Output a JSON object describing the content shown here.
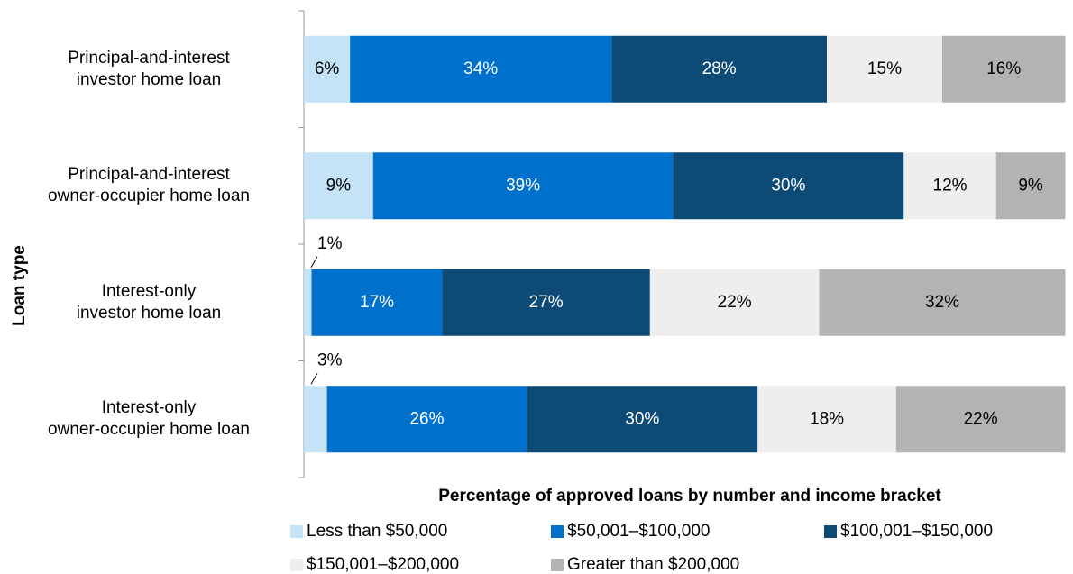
{
  "chart_data": {
    "type": "stacked_barh",
    "xlabel": "Percentage of approved loans by number and income bracket",
    "ylabel": "Loan type",
    "categories": [
      "Principal-and-interest\ninvestor home loan",
      "Principal-and-interest\nowner-occupier home loan",
      "Interest-only\ninvestor home loan",
      "Interest-only\nowner-occupier home loan"
    ],
    "xlim": [
      0,
      100
    ],
    "legend": "bottom",
    "series": [
      {
        "name": "Less than $50,000",
        "color": "#c5e3f7",
        "values": [
          6,
          9,
          1,
          3
        ],
        "value_labels": [
          "6%",
          "9%",
          "1%",
          "3%"
        ]
      },
      {
        "name": "$50,001–$100,000",
        "color": "#0070cd",
        "values": [
          34,
          39,
          17,
          26
        ],
        "value_labels": [
          "34%",
          "39%",
          "17%",
          "26%"
        ]
      },
      {
        "name": "$100,001–$150,000",
        "color": "#0d4a75",
        "values": [
          28,
          30,
          27,
          30
        ],
        "value_labels": [
          "28%",
          "30%",
          "27%",
          "30%"
        ]
      },
      {
        "name": "$150,001–$200,000",
        "color": "#eeeeee",
        "values": [
          15,
          12,
          22,
          18
        ],
        "value_labels": [
          "15%",
          "12%",
          "22%",
          "18%"
        ]
      },
      {
        "name": "Greater than $200,000",
        "color": "#b3b3b3",
        "values": [
          16,
          9,
          32,
          22
        ],
        "value_labels": [
          "16%",
          "9%",
          "32%",
          "22%"
        ]
      }
    ]
  }
}
